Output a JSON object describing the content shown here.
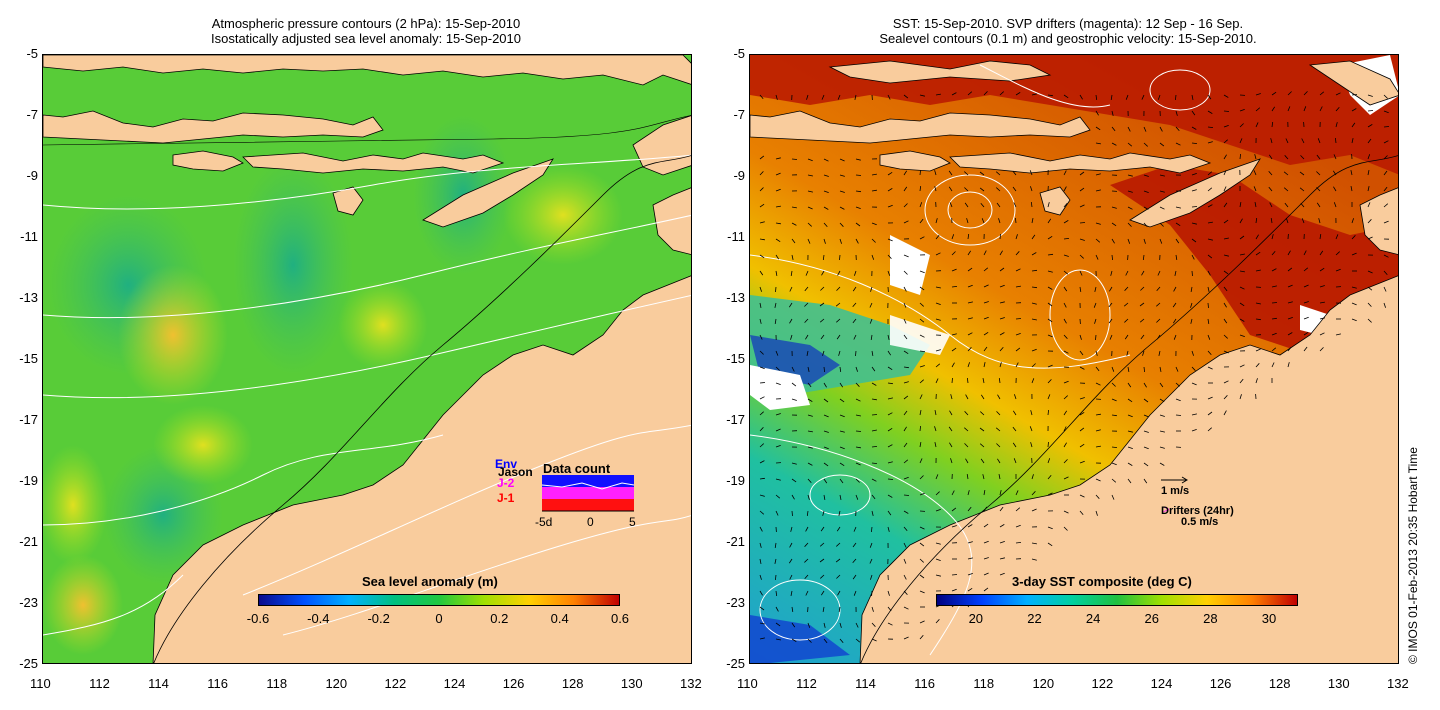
{
  "left_panel": {
    "title_line1": "Atmospheric pressure contours (2 hPa): 15-Sep-2010",
    "title_line2": "Isostatically adjusted sea level anomaly: 15-Sep-2010",
    "colorbar_title": "Sea level anomaly (m)",
    "colorbar_ticks": [
      "-0.6",
      "-0.4",
      "-0.2",
      "0",
      "0.2",
      "0.4",
      "0.6"
    ],
    "inset": {
      "legend_env": "Env",
      "legend_jason": "Jason",
      "legend_j2": "J-2",
      "legend_j1": "J-1",
      "title": "Data count",
      "x_ticks": [
        "-5d",
        "0",
        "5"
      ]
    }
  },
  "right_panel": {
    "title_line1": "SST: 15-Sep-2010. SVP drifters (magenta): 12 Sep - 16 Sep.",
    "title_line2": "Sealevel contours (0.1 m) and geostrophic velocity: 15-Sep-2010.",
    "colorbar_title": "3-day SST composite (deg C)",
    "colorbar_ticks": [
      "20",
      "22",
      "24",
      "26",
      "28",
      "30"
    ],
    "velocity_scale": "1 m/s",
    "drifters_label": "Drifters (24hr)",
    "drifter_scale": "0.5 m/s"
  },
  "axes": {
    "y_ticks": [
      "-5",
      "-7",
      "-9",
      "-11",
      "-13",
      "-15",
      "-17",
      "-19",
      "-21",
      "-23",
      "-25"
    ],
    "x_ticks": [
      "110",
      "112",
      "114",
      "116",
      "118",
      "120",
      "122",
      "124",
      "126",
      "128",
      "130",
      "132"
    ]
  },
  "credit": "© IMOS 01-Feb-2013 20:35 Hobart Time",
  "colors": {
    "land": "#f9cc9d",
    "sla_scale": [
      "#0a0a8c",
      "#0060ff",
      "#00c8e0",
      "#00c070",
      "#40d000",
      "#c0e000",
      "#ffd000",
      "#ff8000",
      "#c00000"
    ],
    "sst_scale": [
      "#000080",
      "#0040ff",
      "#00b0ff",
      "#00d0a0",
      "#20c040",
      "#a0e000",
      "#ffd000",
      "#ff8000",
      "#c00000"
    ]
  }
}
